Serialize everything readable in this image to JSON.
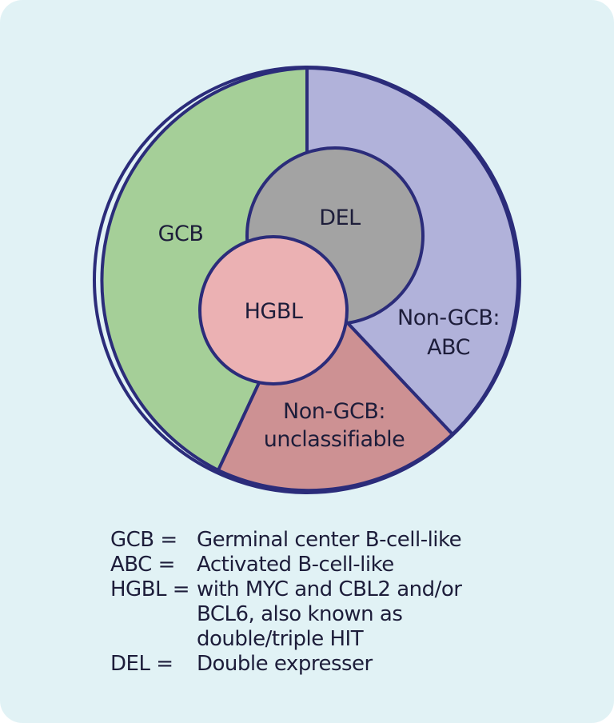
{
  "diagram": {
    "colors": {
      "background": "#e1f2f5",
      "outline": "#2b2c7a",
      "gcb": "#a5cf98",
      "abc": "#b1b2da",
      "unclassifiable": "#cd9193",
      "del": "#a3a3a3",
      "hgbl": "#ebb1b3"
    },
    "segments": {
      "gcb": "GCB",
      "del": "DEL",
      "hgbl": "HGBL",
      "abc_line1": "Non-GCB:",
      "abc_line2": "ABC",
      "unclassifiable_line1": "Non-GCB:",
      "unclassifiable_line2": "unclassifiable"
    }
  },
  "legend": [
    {
      "term": "GCB =",
      "definition": "Germinal center B-cell-like"
    },
    {
      "term": "ABC =",
      "definition": "Activated B-cell-like"
    },
    {
      "term": "HGBL =",
      "definition": "with MYC and CBL2 and/or BCL6, also known as double/triple HIT"
    },
    {
      "term": "DEL =",
      "definition": "Double expresser"
    }
  ]
}
